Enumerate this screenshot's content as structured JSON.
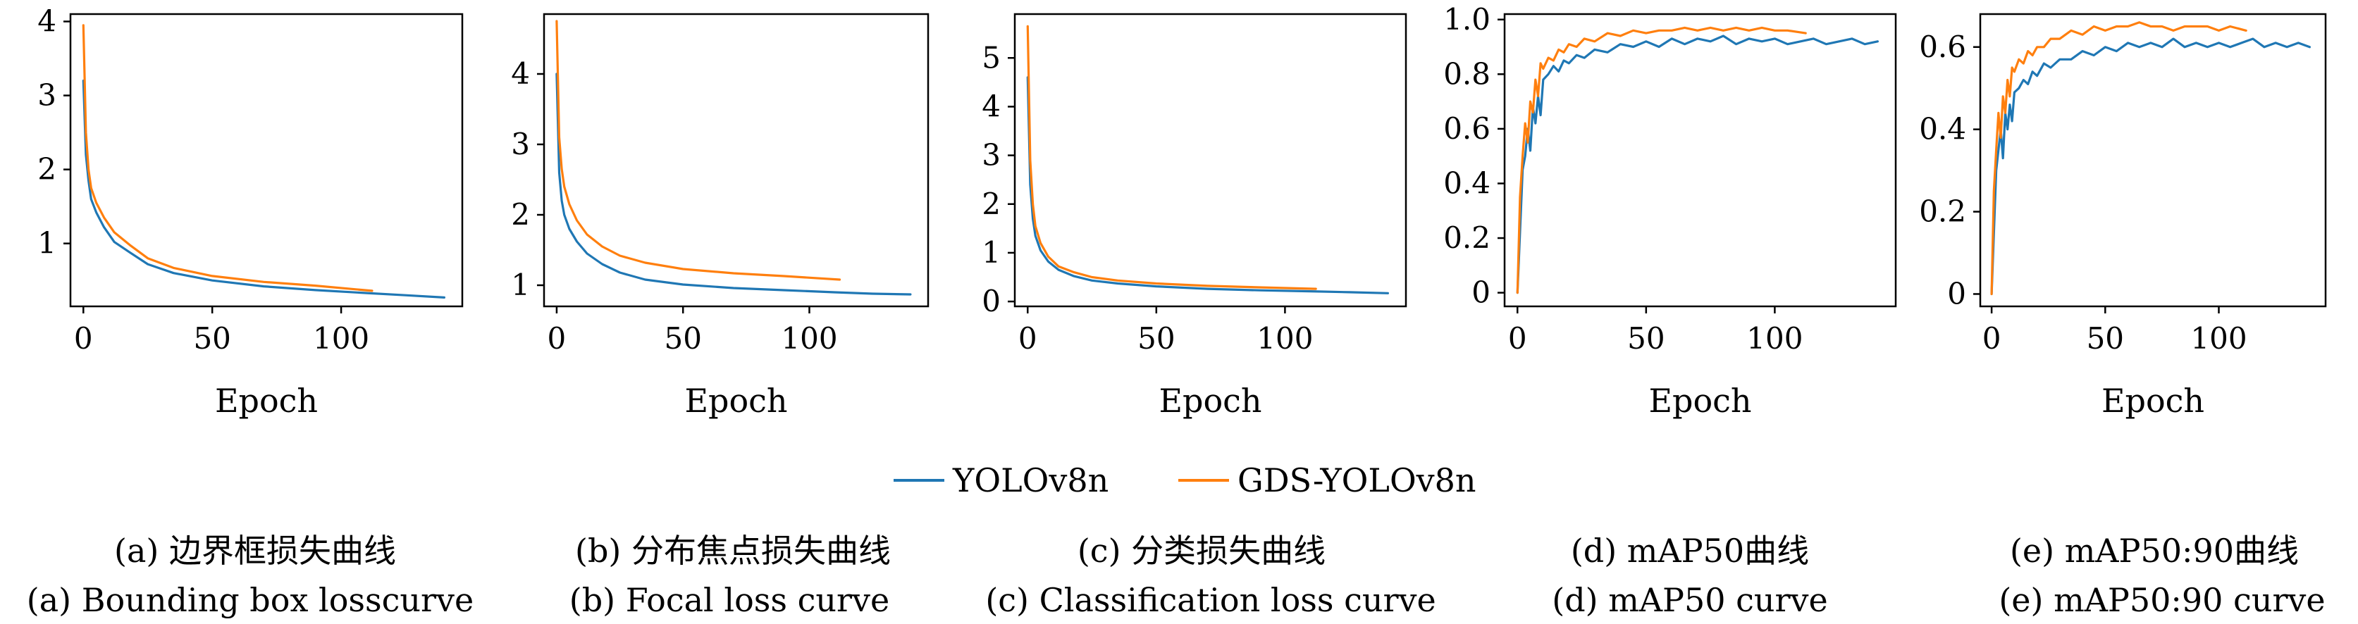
{
  "colors": {
    "yolo": "#1f77b4",
    "gds": "#ff7f0e"
  },
  "legend": [
    {
      "name": "YOLOv8n",
      "color": "#1f77b4"
    },
    {
      "name": "GDS-YOLOv8n",
      "color": "#ff7f0e"
    }
  ],
  "chart_data": [
    {
      "type": "line",
      "xlabel": "Epoch",
      "ylabel": "",
      "xlim": [
        -5,
        147
      ],
      "ylim": [
        0.15,
        4.1
      ],
      "xticks": [
        0,
        50,
        100
      ],
      "yticks": [
        1,
        2,
        3,
        4
      ],
      "caption_cn": "(a) 边界框损失曲线",
      "caption_en": "(a) Bounding box losscurve",
      "series": [
        {
          "name": "YOLOv8n",
          "x": [
            0,
            1,
            2,
            3,
            5,
            8,
            12,
            18,
            25,
            35,
            50,
            70,
            90,
            110,
            125,
            140
          ],
          "y": [
            3.2,
            2.2,
            1.85,
            1.6,
            1.42,
            1.22,
            1.02,
            0.88,
            0.72,
            0.6,
            0.5,
            0.42,
            0.37,
            0.33,
            0.3,
            0.27
          ]
        },
        {
          "name": "GDS-YOLOv8n",
          "x": [
            0,
            1,
            2,
            3,
            5,
            8,
            12,
            18,
            25,
            35,
            50,
            70,
            90,
            112
          ],
          "y": [
            3.95,
            2.5,
            2.0,
            1.75,
            1.55,
            1.35,
            1.15,
            0.98,
            0.8,
            0.67,
            0.56,
            0.48,
            0.43,
            0.36
          ]
        }
      ]
    },
    {
      "type": "line",
      "xlabel": "Epoch",
      "ylabel": "",
      "xlim": [
        -5,
        147
      ],
      "ylim": [
        0.7,
        4.85
      ],
      "xticks": [
        0,
        50,
        100
      ],
      "yticks": [
        1,
        2,
        3,
        4
      ],
      "caption_cn": "(b) 分布焦点损失曲线",
      "caption_en": "(b) Focal loss curve",
      "series": [
        {
          "name": "YOLOv8n",
          "x": [
            0,
            1,
            2,
            3,
            5,
            8,
            12,
            18,
            25,
            35,
            50,
            70,
            90,
            110,
            125,
            140
          ],
          "y": [
            4.0,
            2.6,
            2.2,
            2.0,
            1.8,
            1.62,
            1.45,
            1.3,
            1.18,
            1.08,
            1.01,
            0.96,
            0.93,
            0.9,
            0.88,
            0.87
          ]
        },
        {
          "name": "GDS-YOLOv8n",
          "x": [
            0,
            1,
            2,
            3,
            5,
            8,
            12,
            18,
            25,
            35,
            50,
            70,
            90,
            112
          ],
          "y": [
            4.75,
            3.1,
            2.65,
            2.4,
            2.15,
            1.92,
            1.72,
            1.55,
            1.42,
            1.32,
            1.23,
            1.17,
            1.13,
            1.08
          ]
        }
      ]
    },
    {
      "type": "line",
      "xlabel": "Epoch",
      "ylabel": "",
      "xlim": [
        -5,
        147
      ],
      "ylim": [
        -0.1,
        5.9
      ],
      "xticks": [
        0,
        50,
        100
      ],
      "yticks": [
        0,
        1,
        2,
        3,
        4,
        5
      ],
      "caption_cn": "(c) 分类损失曲线",
      "caption_en": "(c) Classification loss curve",
      "series": [
        {
          "name": "YOLOv8n",
          "x": [
            0,
            1,
            2,
            3,
            5,
            8,
            12,
            18,
            25,
            35,
            50,
            70,
            90,
            110,
            125,
            140
          ],
          "y": [
            4.6,
            2.4,
            1.7,
            1.35,
            1.05,
            0.82,
            0.65,
            0.52,
            0.43,
            0.37,
            0.31,
            0.26,
            0.23,
            0.21,
            0.19,
            0.17
          ]
        },
        {
          "name": "GDS-YOLOv8n",
          "x": [
            0,
            1,
            2,
            3,
            5,
            8,
            12,
            18,
            25,
            35,
            50,
            70,
            90,
            112
          ],
          "y": [
            5.65,
            2.9,
            2.0,
            1.55,
            1.2,
            0.92,
            0.72,
            0.6,
            0.5,
            0.43,
            0.37,
            0.32,
            0.29,
            0.26
          ]
        }
      ]
    },
    {
      "type": "line",
      "xlabel": "Epoch",
      "ylabel": "",
      "xlim": [
        -5,
        147
      ],
      "ylim": [
        -0.05,
        1.02
      ],
      "xticks": [
        0,
        50,
        100
      ],
      "yticks": [
        0,
        0.2,
        0.4,
        0.6,
        0.8,
        1.0
      ],
      "ytick_labels": [
        "0",
        "0.2",
        "0.4",
        "0.6",
        "0.8",
        "1.0"
      ],
      "caption_cn": "(d) mAP50曲线",
      "caption_en": "(d) mAP50 curve",
      "series": [
        {
          "name": "YOLOv8n",
          "x": [
            0,
            2,
            3,
            4,
            5,
            6,
            7,
            8,
            9,
            10,
            12,
            14,
            16,
            18,
            20,
            23,
            26,
            30,
            35,
            40,
            45,
            50,
            55,
            60,
            65,
            70,
            75,
            80,
            85,
            90,
            95,
            100,
            105,
            110,
            115,
            120,
            125,
            130,
            135,
            140
          ],
          "y": [
            0,
            0.45,
            0.5,
            0.6,
            0.52,
            0.68,
            0.62,
            0.72,
            0.65,
            0.78,
            0.8,
            0.83,
            0.81,
            0.85,
            0.84,
            0.87,
            0.86,
            0.89,
            0.88,
            0.91,
            0.9,
            0.92,
            0.9,
            0.93,
            0.91,
            0.93,
            0.92,
            0.94,
            0.91,
            0.93,
            0.92,
            0.93,
            0.91,
            0.92,
            0.93,
            0.91,
            0.92,
            0.93,
            0.91,
            0.92
          ]
        },
        {
          "name": "GDS-YOLOv8n",
          "x": [
            0,
            1,
            2,
            3,
            4,
            5,
            6,
            7,
            8,
            9,
            10,
            12,
            14,
            16,
            18,
            20,
            23,
            26,
            30,
            35,
            40,
            45,
            50,
            55,
            60,
            65,
            70,
            75,
            80,
            85,
            90,
            95,
            100,
            105,
            112
          ],
          "y": [
            0,
            0.35,
            0.5,
            0.62,
            0.55,
            0.7,
            0.66,
            0.78,
            0.72,
            0.84,
            0.82,
            0.86,
            0.85,
            0.89,
            0.88,
            0.91,
            0.9,
            0.93,
            0.92,
            0.95,
            0.94,
            0.96,
            0.95,
            0.96,
            0.96,
            0.97,
            0.96,
            0.97,
            0.96,
            0.97,
            0.96,
            0.97,
            0.96,
            0.96,
            0.95
          ]
        }
      ]
    },
    {
      "type": "line",
      "xlabel": "Epoch",
      "ylabel": "",
      "xlim": [
        -5,
        147
      ],
      "ylim": [
        -0.03,
        0.68
      ],
      "xticks": [
        0,
        50,
        100
      ],
      "yticks": [
        0,
        0.2,
        0.4,
        0.6
      ],
      "ytick_labels": [
        "0",
        "0.2",
        "0.4",
        "0.6"
      ],
      "caption_cn": "(e) mAP50:90曲线",
      "caption_en": "(e) mAP50:90 curve",
      "series": [
        {
          "name": "YOLOv8n",
          "x": [
            0,
            2,
            3,
            4,
            5,
            6,
            7,
            8,
            9,
            10,
            12,
            14,
            16,
            18,
            20,
            23,
            26,
            30,
            35,
            40,
            45,
            50,
            55,
            60,
            65,
            70,
            75,
            80,
            85,
            90,
            95,
            100,
            105,
            110,
            115,
            120,
            125,
            130,
            135,
            140
          ],
          "y": [
            0,
            0.3,
            0.35,
            0.4,
            0.33,
            0.44,
            0.4,
            0.46,
            0.42,
            0.49,
            0.5,
            0.52,
            0.51,
            0.54,
            0.53,
            0.56,
            0.55,
            0.57,
            0.57,
            0.59,
            0.58,
            0.6,
            0.59,
            0.61,
            0.6,
            0.61,
            0.6,
            0.62,
            0.6,
            0.61,
            0.6,
            0.61,
            0.6,
            0.61,
            0.62,
            0.6,
            0.61,
            0.6,
            0.61,
            0.6
          ]
        },
        {
          "name": "GDS-YOLOv8n",
          "x": [
            0,
            1,
            2,
            3,
            4,
            5,
            6,
            7,
            8,
            9,
            10,
            12,
            14,
            16,
            18,
            20,
            23,
            26,
            30,
            35,
            40,
            45,
            50,
            55,
            60,
            65,
            70,
            75,
            80,
            85,
            90,
            95,
            100,
            105,
            112
          ],
          "y": [
            0,
            0.25,
            0.35,
            0.44,
            0.38,
            0.48,
            0.44,
            0.52,
            0.48,
            0.55,
            0.54,
            0.57,
            0.56,
            0.59,
            0.58,
            0.6,
            0.6,
            0.62,
            0.62,
            0.64,
            0.63,
            0.65,
            0.64,
            0.65,
            0.65,
            0.66,
            0.65,
            0.65,
            0.64,
            0.65,
            0.65,
            0.65,
            0.64,
            0.65,
            0.64
          ]
        }
      ]
    }
  ]
}
